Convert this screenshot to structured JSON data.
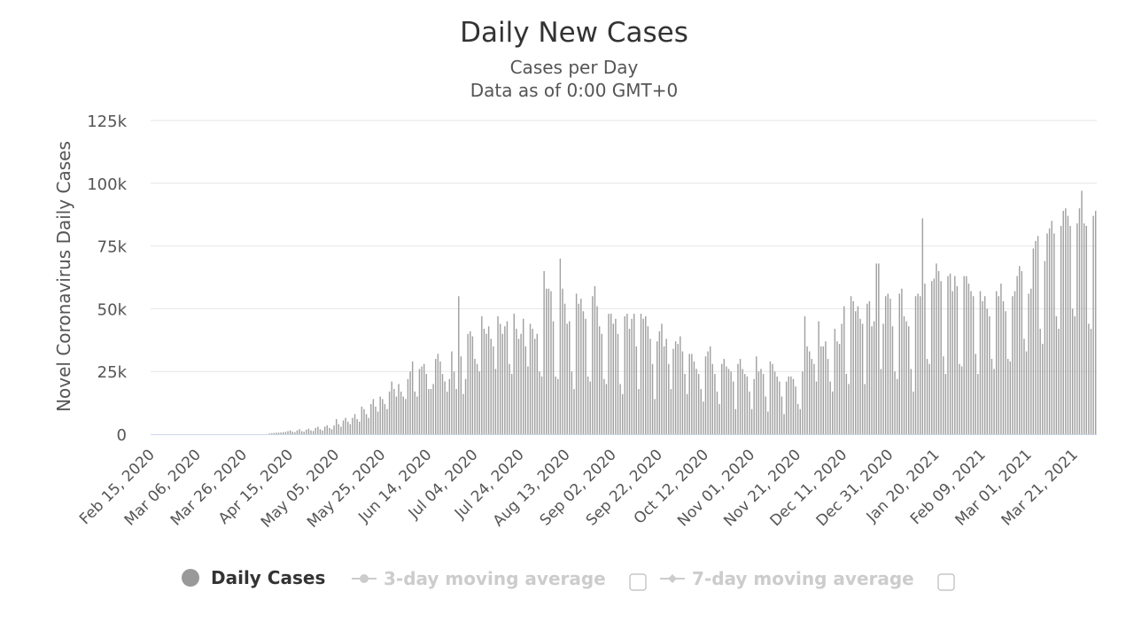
{
  "chart_data": {
    "type": "bar",
    "title": "Daily New Cases",
    "subtitle": "Cases per Day",
    "subtitle2": "Data as of 0:00 GMT+0",
    "ylabel": "Novel Coronavirus Daily Cases",
    "xlabel": "",
    "ylim": [
      0,
      125000
    ],
    "yticks": [
      0,
      25000,
      50000,
      75000,
      100000,
      125000
    ],
    "ytick_labels": [
      "0",
      "25k",
      "50k",
      "75k",
      "100k",
      "125k"
    ],
    "x_start": "Feb 15, 2020",
    "x_end": "Apr 02, 2021",
    "x_tick_interval_days": 20,
    "x_tick_labels": [
      "Feb 15, 2020",
      "Mar 06, 2020",
      "Mar 26, 2020",
      "Apr 15, 2020",
      "May 05, 2020",
      "May 25, 2020",
      "Jun 14, 2020",
      "Jul 04, 2020",
      "Jul 24, 2020",
      "Aug 13, 2020",
      "Sep 02, 2020",
      "Sep 22, 2020",
      "Oct 12, 2020",
      "Nov 01, 2020",
      "Nov 21, 2020",
      "Dec 11, 2020",
      "Dec 31, 2020",
      "Jan 20, 2021",
      "Feb 09, 2021",
      "Mar 01, 2021",
      "Mar 21, 2021"
    ],
    "series": [
      {
        "name": "Daily Cases",
        "color": "#a0a0a0",
        "values": [
          0,
          0,
          0,
          0,
          0,
          0,
          0,
          0,
          0,
          0,
          0,
          0,
          0,
          0,
          0,
          0,
          0,
          0,
          0,
          0,
          0,
          0,
          0,
          0,
          0,
          0,
          0,
          0,
          0,
          0,
          0,
          0,
          0,
          0,
          0,
          0,
          0,
          0,
          0,
          0,
          0,
          0,
          0,
          0,
          0,
          0,
          0,
          0,
          0,
          0,
          0,
          300,
          400,
          500,
          600,
          600,
          700,
          800,
          900,
          1200,
          1500,
          1000,
          800,
          1500,
          2000,
          1200,
          1000,
          1800,
          2200,
          1500,
          1300,
          2500,
          3000,
          2000,
          1500,
          3000,
          3500,
          2500,
          2000,
          3500,
          6000,
          4000,
          3000,
          5500,
          6500,
          5000,
          4000,
          6500,
          8000,
          6000,
          5000,
          11000,
          10000,
          8000,
          6500,
          12000,
          14000,
          11000,
          9000,
          15000,
          14000,
          12000,
          10000,
          17000,
          21000,
          18000,
          15000,
          20000,
          17000,
          15000,
          14000,
          22000,
          25000,
          29000,
          17000,
          15000,
          26000,
          27000,
          28000,
          24000,
          18000,
          18000,
          20000,
          30000,
          32000,
          29000,
          24000,
          21000,
          17000,
          22000,
          33000,
          25000,
          18000,
          55000,
          31000,
          16000,
          22000,
          40000,
          41000,
          39000,
          30000,
          28000,
          25000,
          47000,
          42000,
          40000,
          43000,
          38000,
          35000,
          26000,
          47000,
          44000,
          40000,
          43000,
          45000,
          28000,
          24000,
          48000,
          42000,
          38000,
          40000,
          46000,
          35000,
          27000,
          44000,
          42000,
          38000,
          40000,
          25000,
          23000,
          65000,
          58000,
          58000,
          57000,
          45000,
          23000,
          22000,
          70000,
          58000,
          52000,
          44000,
          45000,
          25000,
          18000,
          56000,
          52000,
          54000,
          49000,
          46000,
          23000,
          21000,
          55000,
          59000,
          51000,
          43000,
          40000,
          22000,
          20000,
          48000,
          48000,
          44000,
          46000,
          40000,
          20000,
          16000,
          47000,
          48000,
          42000,
          46000,
          48000,
          35000,
          18000,
          48000,
          46000,
          47000,
          43000,
          38000,
          28000,
          14000,
          37000,
          41000,
          44000,
          35000,
          38000,
          28000,
          18000,
          34000,
          37000,
          36000,
          39000,
          33000,
          24000,
          16000,
          32000,
          32000,
          29000,
          26000,
          24000,
          18000,
          13000,
          31000,
          33000,
          35000,
          28000,
          24000,
          17000,
          12000,
          28000,
          30000,
          27000,
          26000,
          25000,
          21000,
          10000,
          28000,
          30000,
          26000,
          24000,
          23000,
          17000,
          10000,
          22000,
          31000,
          25000,
          26000,
          24000,
          15000,
          9000,
          29000,
          28000,
          25000,
          23000,
          21000,
          15000,
          8000,
          21000,
          23000,
          23000,
          22000,
          19000,
          12000,
          10000,
          25000,
          47000,
          35000,
          33000,
          30000,
          28000,
          21000,
          45000,
          35000,
          35000,
          37000,
          30000,
          21000,
          17000,
          42000,
          37000,
          36000,
          44000,
          51000,
          24000,
          20000,
          55000,
          53000,
          49000,
          51000,
          46000,
          44000,
          20000,
          52000,
          53000,
          43000,
          45000,
          68000,
          68000,
          26000,
          44000,
          55000,
          56000,
          54000,
          43000,
          25000,
          22000,
          56000,
          58000,
          47000,
          45000,
          43000,
          26000,
          17000,
          55000,
          56000,
          55000,
          86000,
          60000,
          30000,
          28000,
          61000,
          62000,
          68000,
          65000,
          61000,
          31000,
          24000,
          63000,
          64000,
          57000,
          63000,
          59000,
          28000,
          27000,
          63000,
          63000,
          60000,
          57000,
          55000,
          32000,
          24000,
          57000,
          53000,
          55000,
          50000,
          47000,
          30000,
          26000,
          57000,
          55000,
          60000,
          53000,
          49000,
          30000,
          29000,
          55000,
          57000,
          63000,
          67000,
          65000,
          38000,
          33000,
          56000,
          58000,
          74000,
          77000,
          79000,
          42000,
          36000,
          69000,
          80000,
          82000,
          85000,
          80000,
          47000,
          42000,
          83000,
          89000,
          90000,
          87000,
          83000,
          50000,
          47000,
          84000,
          90000,
          97000,
          84000,
          83000,
          44000,
          42000,
          87000,
          89000
        ]
      }
    ],
    "legend": [
      {
        "label": "Daily Cases",
        "active": true
      },
      {
        "label": "3-day moving average",
        "active": false
      },
      {
        "label": "7-day moving average",
        "active": false
      }
    ]
  },
  "colors": {
    "bar": "#a0a0a0",
    "grid": "#e6e6e6",
    "legend_active": "#333333",
    "legend_inactive": "#cccccc",
    "axis": "#ccd6eb"
  }
}
